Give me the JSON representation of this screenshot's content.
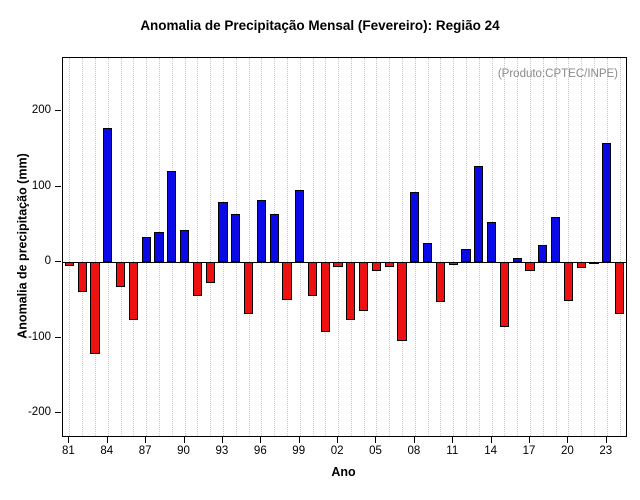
{
  "title": "Anomalia de Precipitação Mensal (Fevereiro): Região 24",
  "annotation": "(Produto:CPTEC/INPE)",
  "chart_data": {
    "type": "bar",
    "title": "Anomalia de Precipitação Mensal (Fevereiro): Região 24",
    "xlabel": "Ano",
    "ylabel": "Anomalia de precipitação (mm)",
    "ylim": [
      -230,
      270
    ],
    "yticks": [
      -200,
      -100,
      0,
      100,
      200
    ],
    "grid": "vertical-dotted",
    "legend": "none",
    "categories": [
      "81",
      "82",
      "83",
      "84",
      "85",
      "86",
      "87",
      "88",
      "89",
      "90",
      "91",
      "92",
      "93",
      "94",
      "95",
      "96",
      "97",
      "98",
      "99",
      "00",
      "01",
      "02",
      "03",
      "04",
      "05",
      "06",
      "07",
      "08",
      "09",
      "10",
      "11",
      "12",
      "13",
      "14",
      "15",
      "16",
      "17",
      "18",
      "19",
      "20",
      "21",
      "22",
      "23",
      "24"
    ],
    "values": [
      -5,
      -40,
      -122,
      178,
      -33,
      -76,
      33,
      40,
      120,
      43,
      -45,
      -28,
      80,
      63,
      -68,
      82,
      64,
      -50,
      95,
      -45,
      -93,
      -6,
      -76,
      -65,
      -12,
      -6,
      -105,
      93,
      25,
      -53,
      -4,
      18,
      127,
      53,
      -86,
      5,
      -12,
      22,
      60,
      -52,
      -8,
      -3,
      158,
      -68
    ],
    "xtick_labels": [
      "81",
      "84",
      "87",
      "90",
      "93",
      "96",
      "99",
      "02",
      "05",
      "08",
      "11",
      "14",
      "17",
      "20",
      "23"
    ],
    "xtick_every": 3,
    "colors": {
      "positive": "#0a0ae6",
      "negative": "#ee1111",
      "bar_border": "#000000",
      "grid": "#c9c9c9",
      "annotation_text": "#8a8a8a"
    }
  }
}
